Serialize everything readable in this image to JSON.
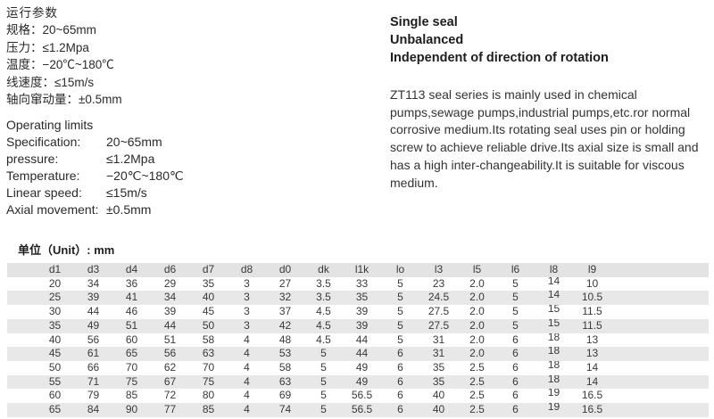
{
  "colors": {
    "background": "#ffffff",
    "text": "#2a2a2a",
    "table_stripe": "#e8e8e8",
    "table_header_bg": "#e3e3e3"
  },
  "cn_params": {
    "title": "运行参数",
    "items": [
      {
        "label": "规格：",
        "value": "20~65mm"
      },
      {
        "label": "压力：",
        "value": "≤1.2Mpa"
      },
      {
        "label": "温度：",
        "value": "−20℃~180℃"
      },
      {
        "label": "线速度：",
        "value": "≤15m/s"
      },
      {
        "label": "轴向窜动量：",
        "value": "±0.5mm"
      }
    ]
  },
  "en_params": {
    "title": "Operating limits",
    "items": [
      {
        "label": "Specification:",
        "value": "20~65mm"
      },
      {
        "label": "pressure:",
        "value": "≤1.2Mpa"
      },
      {
        "label": "Temperature:",
        "value": "−20℃~180℃"
      },
      {
        "label": "Linear speed:",
        "value": "≤15m/s"
      },
      {
        "label": "Axial movement:",
        "value": "±0.5mm"
      }
    ]
  },
  "features": [
    "Single seal",
    "Unbalanced",
    "Independent of direction of rotation"
  ],
  "description": "ZT113 seal series is mainly used in chemical pumps,sewage pumps,industrial pumps,etc.ror normal corrosive medium.Its rotating seal uses pin or holding screw to achieve reliable drive.Its axial size is small and has a high inter-changeability.It is suitable for viscous medium.",
  "table": {
    "unit_label": "单位（Unit）: mm",
    "headers": [
      "d1",
      "d3",
      "d4",
      "d6",
      "d7",
      "d8",
      "d0",
      "dk",
      "l1k",
      "lo",
      "l3",
      "l5",
      "l6",
      "l8",
      "l9"
    ],
    "raised_column": "l8",
    "rows": [
      [
        "20",
        "34",
        "36",
        "29",
        "35",
        "3",
        "27",
        "3.5",
        "33",
        "5",
        "23",
        "2.0",
        "5",
        "14",
        "10"
      ],
      [
        "25",
        "39",
        "41",
        "34",
        "40",
        "3",
        "32",
        "3.5",
        "35",
        "5",
        "24.5",
        "2.0",
        "5",
        "14",
        "10.5"
      ],
      [
        "30",
        "44",
        "46",
        "39",
        "45",
        "3",
        "37",
        "4.5",
        "39",
        "5",
        "27.5",
        "2.0",
        "5",
        "15",
        "11.5"
      ],
      [
        "35",
        "49",
        "51",
        "44",
        "50",
        "3",
        "42",
        "4.5",
        "39",
        "5",
        "27.5",
        "2.0",
        "5",
        "15",
        "11.5"
      ],
      [
        "40",
        "56",
        "60",
        "51",
        "58",
        "4",
        "48",
        "4.5",
        "44",
        "5",
        "31",
        "2.0",
        "6",
        "18",
        "13"
      ],
      [
        "45",
        "61",
        "65",
        "56",
        "63",
        "4",
        "53",
        "5",
        "44",
        "6",
        "31",
        "2.0",
        "6",
        "18",
        "13"
      ],
      [
        "50",
        "66",
        "70",
        "62",
        "70",
        "4",
        "58",
        "5",
        "49",
        "6",
        "35",
        "2.5",
        "6",
        "18",
        "14"
      ],
      [
        "55",
        "71",
        "75",
        "67",
        "75",
        "4",
        "63",
        "5",
        "49",
        "6",
        "35",
        "2.5",
        "6",
        "18",
        "14"
      ],
      [
        "60",
        "79",
        "85",
        "72",
        "80",
        "4",
        "69",
        "5",
        "56.5",
        "6",
        "40",
        "2.5",
        "6",
        "19",
        "16.5"
      ],
      [
        "65",
        "84",
        "90",
        "77",
        "85",
        "4",
        "74",
        "5",
        "56.5",
        "6",
        "40",
        "2.5",
        "6",
        "19",
        "16.5"
      ]
    ]
  }
}
